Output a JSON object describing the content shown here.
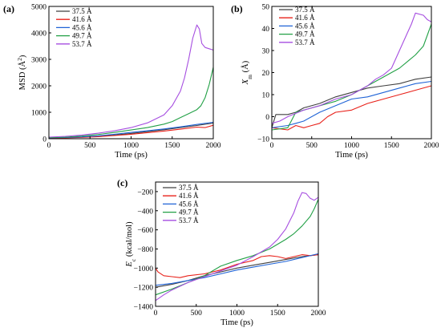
{
  "chart_data": [
    {
      "type": "line",
      "panel_label": "(a)",
      "xlabel": "Time (ps)",
      "ylabel_main": "MSD (Å",
      "ylabel_sup": "2",
      "ylabel_tail": ")",
      "ylabel_sub": "",
      "xlim": [
        0,
        2000
      ],
      "ylim": [
        0,
        5000
      ],
      "xticks": [
        0,
        500,
        1000,
        1500,
        2000
      ],
      "yticks": [
        0,
        1000,
        2000,
        3000,
        4000,
        5000
      ],
      "legend_position": "top-left",
      "series": [
        {
          "name": "37.5 Å",
          "color": "#404040",
          "x": [
            0,
            200,
            400,
            600,
            800,
            1000,
            1200,
            1400,
            1600,
            1800,
            2000
          ],
          "y": [
            30,
            40,
            60,
            90,
            140,
            200,
            270,
            340,
            420,
            500,
            590
          ]
        },
        {
          "name": "41.6 Å",
          "color": "#e8211a",
          "x": [
            0,
            200,
            400,
            600,
            800,
            1000,
            1200,
            1400,
            1600,
            1800,
            1900,
            2000
          ],
          "y": [
            20,
            30,
            50,
            80,
            120,
            170,
            230,
            290,
            360,
            440,
            420,
            510
          ]
        },
        {
          "name": "45.6 Å",
          "color": "#1f63d6",
          "x": [
            0,
            200,
            400,
            600,
            800,
            1000,
            1200,
            1400,
            1600,
            1800,
            2000
          ],
          "y": [
            35,
            45,
            70,
            110,
            170,
            240,
            300,
            370,
            450,
            540,
            620
          ]
        },
        {
          "name": "49.7 Å",
          "color": "#22a046",
          "x": [
            0,
            200,
            400,
            600,
            800,
            1000,
            1200,
            1400,
            1500,
            1600,
            1700,
            1800,
            1850,
            1900,
            1950,
            2000
          ],
          "y": [
            40,
            60,
            100,
            160,
            240,
            330,
            420,
            550,
            650,
            800,
            950,
            1100,
            1250,
            1550,
            2050,
            2700
          ]
        },
        {
          "name": "53.7 Å",
          "color": "#a64ee0",
          "x": [
            0,
            200,
            400,
            600,
            800,
            1000,
            1200,
            1400,
            1500,
            1600,
            1650,
            1700,
            1750,
            1800,
            1830,
            1860,
            1900,
            1950,
            2000
          ],
          "y": [
            60,
            90,
            140,
            210,
            300,
            420,
            600,
            900,
            1250,
            1800,
            2300,
            3000,
            3800,
            4300,
            4150,
            3600,
            3450,
            3400,
            3350
          ]
        }
      ]
    },
    {
      "type": "line",
      "panel_label": "(b)",
      "xlabel": "Time (ps)",
      "ylabel_main": "X",
      "ylabel_sup": "",
      "ylabel_sub": "m",
      "ylabel_tail": " (Å)",
      "xlim": [
        0,
        2000
      ],
      "ylim": [
        -10,
        50
      ],
      "xticks": [
        0,
        500,
        1000,
        1500,
        2000
      ],
      "yticks": [
        -10,
        0,
        10,
        20,
        30,
        40,
        50
      ],
      "legend_position": "top-left",
      "series": [
        {
          "name": "37.5 Å",
          "color": "#404040",
          "x": [
            0,
            50,
            100,
            200,
            300,
            400,
            600,
            800,
            1000,
            1200,
            1400,
            1600,
            1800,
            2000
          ],
          "y": [
            -5,
            1,
            1,
            1,
            2,
            4,
            6,
            9,
            11,
            13,
            14,
            15,
            17,
            18
          ]
        },
        {
          "name": "41.6 Å",
          "color": "#e8211a",
          "x": [
            0,
            200,
            300,
            400,
            500,
            600,
            700,
            800,
            1000,
            1200,
            1400,
            1600,
            1800,
            2000
          ],
          "y": [
            -5,
            -6,
            -4,
            -5,
            -4,
            -3,
            0,
            2,
            3,
            6,
            8,
            10,
            12,
            14
          ]
        },
        {
          "name": "45.6 Å",
          "color": "#1f63d6",
          "x": [
            0,
            200,
            300,
            400,
            600,
            800,
            1000,
            1200,
            1400,
            1600,
            1800,
            2000
          ],
          "y": [
            -5,
            -4,
            -3,
            -2,
            2,
            5,
            8,
            9,
            11,
            13,
            15,
            16
          ]
        },
        {
          "name": "49.7 Å",
          "color": "#22a046",
          "x": [
            0,
            200,
            300,
            400,
            600,
            800,
            1000,
            1200,
            1400,
            1600,
            1700,
            1800,
            1900,
            2000
          ],
          "y": [
            -6,
            -5,
            2,
            3,
            5,
            7,
            10,
            14,
            18,
            22,
            25,
            28,
            32,
            42
          ]
        },
        {
          "name": "53.7 Å",
          "color": "#a64ee0",
          "x": [
            0,
            100,
            200,
            400,
            600,
            800,
            1000,
            1200,
            1300,
            1400,
            1500,
            1600,
            1700,
            1750,
            1800,
            1900,
            1950,
            2000
          ],
          "y": [
            -3,
            -2,
            0,
            3,
            5,
            8,
            10,
            14,
            17,
            19,
            22,
            30,
            38,
            42,
            47,
            46,
            44,
            43
          ]
        }
      ]
    },
    {
      "type": "line",
      "panel_label": "(c)",
      "xlabel": "Time (ps)",
      "ylabel_main": "E",
      "ylabel_sup": "",
      "ylabel_sub": "c",
      "ylabel_tail": " (kcal/mol)",
      "xlim": [
        0,
        2000
      ],
      "ylim": [
        -1400,
        -100
      ],
      "xticks": [
        0,
        500,
        1000,
        1500,
        2000
      ],
      "yticks": [
        -1400,
        -1200,
        -1000,
        -800,
        -600,
        -400,
        -200
      ],
      "legend_position": "top-left",
      "series": [
        {
          "name": "37.5 Å",
          "color": "#404040",
          "x": [
            0,
            200,
            400,
            600,
            800,
            1000,
            1200,
            1400,
            1600,
            1800,
            2000
          ],
          "y": [
            -1200,
            -1170,
            -1130,
            -1080,
            -1040,
            -1000,
            -970,
            -940,
            -910,
            -880,
            -860
          ]
        },
        {
          "name": "41.6 Å",
          "color": "#e8211a",
          "x": [
            0,
            30,
            100,
            200,
            300,
            400,
            600,
            800,
            1000,
            1200,
            1300,
            1400,
            1500,
            1600,
            1700,
            1800,
            1900,
            2000
          ],
          "y": [
            -1000,
            -1040,
            -1080,
            -1090,
            -1100,
            -1080,
            -1060,
            -1020,
            -960,
            -920,
            -880,
            -870,
            -880,
            -900,
            -880,
            -860,
            -870,
            -860
          ]
        },
        {
          "name": "45.6 Å",
          "color": "#1f63d6",
          "x": [
            0,
            200,
            400,
            600,
            800,
            1000,
            1200,
            1400,
            1600,
            1800,
            2000
          ],
          "y": [
            -1180,
            -1160,
            -1130,
            -1100,
            -1060,
            -1020,
            -990,
            -960,
            -930,
            -890,
            -850
          ]
        },
        {
          "name": "49.7 Å",
          "color": "#22a046",
          "x": [
            0,
            200,
            400,
            600,
            800,
            1000,
            1200,
            1400,
            1500,
            1600,
            1700,
            1800,
            1900,
            1950,
            2000
          ],
          "y": [
            -1280,
            -1220,
            -1150,
            -1080,
            -980,
            -920,
            -870,
            -800,
            -750,
            -700,
            -640,
            -560,
            -460,
            -380,
            -280
          ]
        },
        {
          "name": "53.7 Å",
          "color": "#a64ee0",
          "x": [
            0,
            100,
            200,
            400,
            600,
            800,
            1000,
            1200,
            1400,
            1500,
            1600,
            1700,
            1750,
            1800,
            1850,
            1900,
            1950,
            2000
          ],
          "y": [
            -1340,
            -1280,
            -1230,
            -1150,
            -1090,
            -1030,
            -970,
            -880,
            -780,
            -700,
            -590,
            -420,
            -300,
            -210,
            -220,
            -270,
            -290,
            -260
          ]
        }
      ]
    }
  ]
}
